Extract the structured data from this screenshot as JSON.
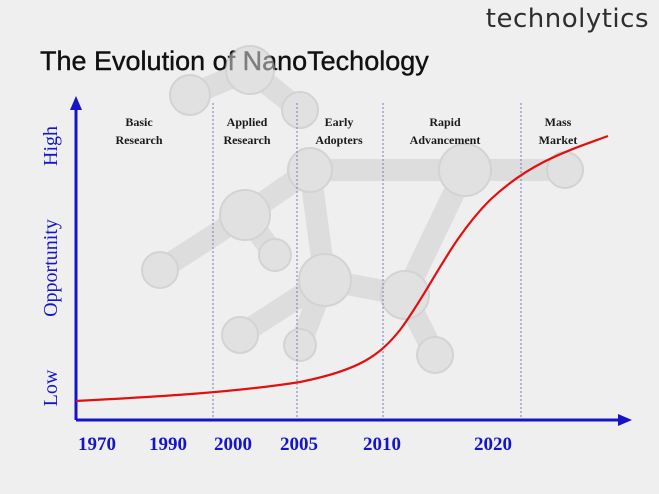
{
  "brand": "technolytics",
  "title": "The Evolution of NanoTechology",
  "y_axis": {
    "high": "High",
    "mid": "Opportunity",
    "low": "Low"
  },
  "x_axis": {
    "ticks": [
      "1970",
      "1990",
      "2000",
      "2005",
      "2010",
      "2020"
    ]
  },
  "phases": [
    {
      "line1": "Basic",
      "line2": "Research"
    },
    {
      "line1": "Applied",
      "line2": "Research"
    },
    {
      "line1": "Early",
      "line2": "Adopters"
    },
    {
      "line1": "Rapid",
      "line2": "Advancement"
    },
    {
      "line1": "Mass",
      "line2": "Market"
    }
  ],
  "colors": {
    "axis": "#1414c8",
    "curve": "#e01010",
    "divider": "#7a7ab8",
    "background": "#efefef"
  }
}
